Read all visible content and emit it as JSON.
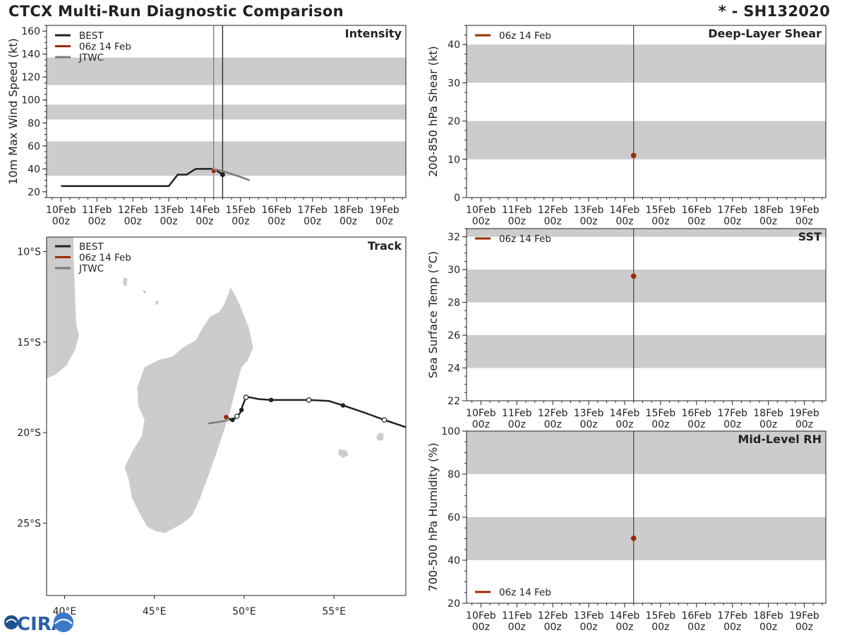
{
  "header": {
    "title_left": "CTCX Multi-Run Diagnostic Comparison",
    "title_right": "* - SH132020"
  },
  "colors": {
    "best": "#222222",
    "run": "#9a2b06",
    "jtwc": "#7a7a7a",
    "band": "#cccccc",
    "land": "#cccccc"
  },
  "time_axis": {
    "day_labels": [
      "10Feb",
      "11Feb",
      "12Feb",
      "13Feb",
      "14Feb",
      "15Feb",
      "16Feb",
      "17Feb",
      "18Feb",
      "19Feb"
    ],
    "hour_label": "00z",
    "range_days": [
      -0.4,
      9.6
    ]
  },
  "chart_data": [
    {
      "id": "intensity",
      "type": "line",
      "title": "Intensity",
      "ylabel": "10m Max Wind Speed (kt)",
      "ylim": [
        15,
        165
      ],
      "yticks": [
        20,
        40,
        60,
        80,
        100,
        120,
        140,
        160
      ],
      "bands": [
        [
          34,
          64
        ],
        [
          83,
          96
        ],
        [
          113,
          137
        ]
      ],
      "legend": [
        "BEST",
        "06z 14 Feb",
        "JTWC"
      ],
      "series": [
        {
          "name": "BEST",
          "x": [
            0,
            0.25,
            0.5,
            0.75,
            1,
            1.25,
            1.5,
            1.75,
            2,
            2.25,
            2.5,
            2.75,
            3,
            3.25,
            3.5,
            3.75,
            4,
            4.25,
            4.5
          ],
          "y": [
            25,
            25,
            25,
            25,
            25,
            25,
            25,
            25,
            25,
            25,
            25,
            25,
            25,
            35,
            35,
            40,
            40,
            40,
            35
          ]
        },
        {
          "name": "JTWC",
          "x": [
            4.25,
            4.5,
            5,
            5.25
          ],
          "y": [
            40,
            38,
            33,
            30
          ]
        }
      ],
      "run_marker": {
        "x": 4.25,
        "y": 38
      },
      "best_end_marker": {
        "x": 4.5,
        "y": 35
      },
      "vlines": {
        "run_x": 4.25,
        "best_x": 4.5
      }
    },
    {
      "id": "shear",
      "type": "line",
      "title": "Deep-Layer Shear",
      "ylabel": "200-850 hPa Shear (kt)",
      "ylim": [
        0,
        45
      ],
      "yticks": [
        0,
        10,
        20,
        30,
        40
      ],
      "bands": [
        [
          10,
          20
        ],
        [
          30,
          40
        ]
      ],
      "legend": [
        "06z 14 Feb"
      ],
      "run_x": 4.25,
      "points": [
        {
          "x": 4.25,
          "y": 11
        }
      ]
    },
    {
      "id": "sst",
      "type": "line",
      "title": "SST",
      "ylabel": "Sea Surface Temp (°C)",
      "ylim": [
        22,
        32.5
      ],
      "yticks": [
        22,
        24,
        26,
        28,
        30,
        32
      ],
      "bands": [
        [
          24,
          26
        ],
        [
          28,
          30
        ],
        [
          32,
          32.5
        ]
      ],
      "legend": [
        "06z 14 Feb"
      ],
      "run_x": 4.25,
      "points": [
        {
          "x": 4.25,
          "y": 29.6
        }
      ]
    },
    {
      "id": "rh",
      "type": "line",
      "title": "Mid-Level RH",
      "ylabel": "700-500 hPa Humidity (%)",
      "ylim": [
        20,
        100
      ],
      "yticks": [
        20,
        40,
        60,
        80,
        100
      ],
      "bands": [
        [
          40,
          60
        ],
        [
          80,
          100
        ]
      ],
      "legend": [
        "06z 14 Feb"
      ],
      "run_x": 4.25,
      "points": [
        {
          "x": 4.25,
          "y": 50.2
        }
      ]
    },
    {
      "id": "track",
      "type": "scatter",
      "title": "Track",
      "xlim": [
        39,
        59
      ],
      "ylim": [
        -29,
        -9.2
      ],
      "xticks": [
        40,
        45,
        50,
        55
      ],
      "xtick_labels": [
        "40°E",
        "45°E",
        "50°E",
        "55°E"
      ],
      "yticks": [
        -10,
        -15,
        -20,
        -25
      ],
      "ytick_labels": [
        "10°S",
        "15°S",
        "20°S",
        "25°S"
      ],
      "legend": [
        "BEST",
        "06z 14 Feb",
        "JTWC"
      ],
      "best_track": {
        "lon": [
          59,
          57.8,
          56.7,
          55.5,
          54.7,
          53.6,
          52.4,
          51.5,
          50.8,
          50.3,
          50.1,
          50.0,
          49.9,
          49.85,
          49.75,
          49.6,
          49.5,
          49.35,
          49.2,
          49.05
        ],
        "lat": [
          -19.7,
          -19.3,
          -18.9,
          -18.5,
          -18.25,
          -18.2,
          -18.2,
          -18.2,
          -18.15,
          -18.05,
          -18.05,
          -18.3,
          -18.55,
          -18.75,
          -18.95,
          -19.1,
          -19.2,
          -19.3,
          -19.25,
          -19.15
        ]
      },
      "best_points_filled": [
        [
          55.5,
          -18.5
        ],
        [
          51.5,
          -18.2
        ],
        [
          49.85,
          -18.75
        ],
        [
          49.35,
          -19.3
        ]
      ],
      "best_points_open": [
        [
          57.8,
          -19.3
        ],
        [
          53.6,
          -18.2
        ],
        [
          50.1,
          -18.05
        ],
        [
          49.6,
          -19.1
        ]
      ],
      "jtwc_track": {
        "lon": [
          49.6,
          49.4,
          49.1,
          48.8,
          48.0
        ],
        "lat": [
          -19.1,
          -19.25,
          -19.3,
          -19.38,
          -19.5
        ]
      },
      "run_point": [
        49.0,
        -19.15
      ]
    }
  ],
  "logo": {
    "text": "CIRA"
  }
}
